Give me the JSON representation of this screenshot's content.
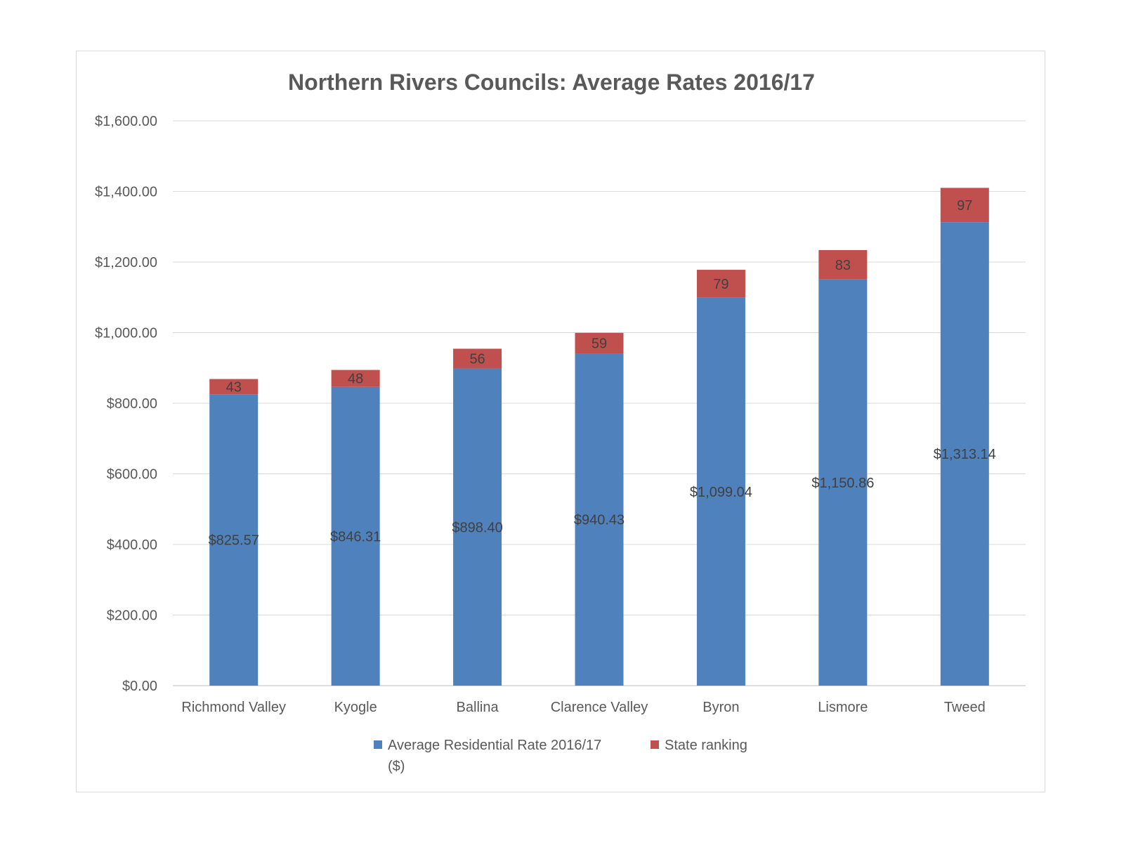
{
  "chart_data": {
    "type": "bar",
    "stacked": true,
    "title": "Northern Rivers Councils: Average Rates 2016/17",
    "categories": [
      "Richmond Valley",
      "Kyogle",
      "Ballina",
      "Clarence Valley",
      "Byron",
      "Lismore",
      "Tweed"
    ],
    "series": [
      {
        "name": "Average Residential Rate 2016/17 ($)",
        "color": "#4F81BD",
        "values": [
          825.57,
          846.31,
          898.4,
          940.43,
          1099.04,
          1150.86,
          1313.14
        ],
        "labels": [
          "$825.57",
          "$846.31",
          "$898.40",
          "$940.43",
          "$1,099.04",
          "$1,150.86",
          "$1,313.14"
        ]
      },
      {
        "name": "State ranking",
        "color": "#C0504D",
        "values": [
          43,
          48,
          56,
          59,
          79,
          83,
          97
        ],
        "labels": [
          "43",
          "48",
          "56",
          "59",
          "79",
          "83",
          "97"
        ]
      }
    ],
    "ylim": [
      0,
      1600
    ],
    "yticks": [
      0,
      200,
      400,
      600,
      800,
      1000,
      1200,
      1400,
      1600
    ],
    "ytick_labels": [
      "$0.00",
      "$200.00",
      "$400.00",
      "$600.00",
      "$800.00",
      "$1,000.00",
      "$1,200.00",
      "$1,400.00",
      "$1,600.00"
    ],
    "grid": true,
    "legend_position": "bottom"
  }
}
